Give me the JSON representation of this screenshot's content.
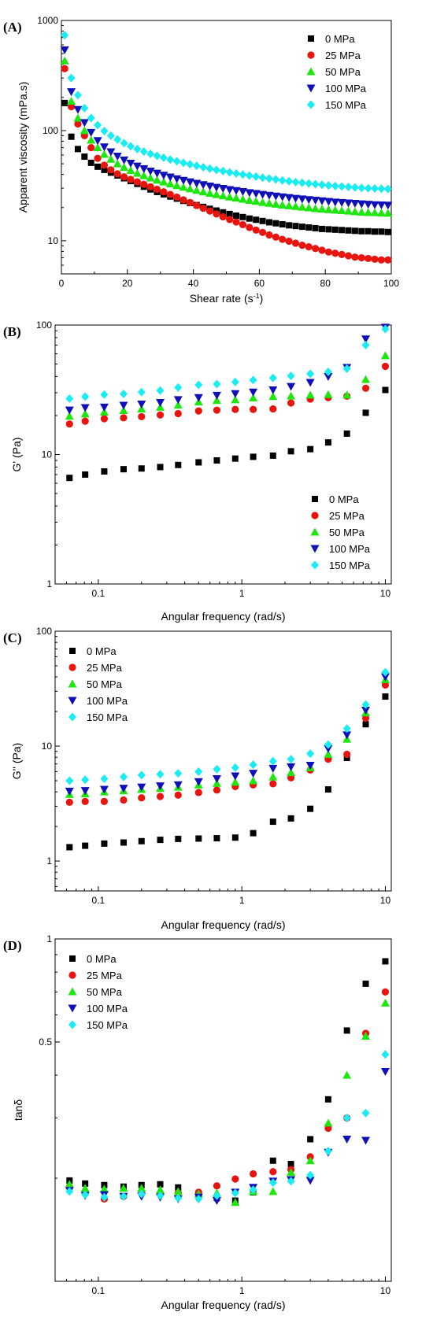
{
  "figure": {
    "panel_labels": [
      "(A)",
      "(B)",
      "(C)",
      "(D)"
    ]
  },
  "series_styles": [
    {
      "name": "0 MPa",
      "color": "#000000",
      "marker": "square"
    },
    {
      "name": "25 MPa",
      "color": "#e8140e",
      "marker": "circle"
    },
    {
      "name": "50 MPa",
      "color": "#1ee60f",
      "marker": "triangle-up"
    },
    {
      "name": "100 MPa",
      "color": "#1010b8",
      "marker": "triangle-down"
    },
    {
      "name": "150 MPa",
      "color": "#19ecf2",
      "marker": "diamond"
    }
  ],
  "chart_data": [
    {
      "panel": "(A)",
      "type": "scatter",
      "xlabel": "Shear rate (s",
      "xlabel_sup": "-1",
      "xlabel_tail": ")",
      "ylabel": "Apparent viscosity (mPa.s)",
      "x_scale": "linear",
      "y_scale": "log",
      "xlim": [
        0,
        100
      ],
      "ylim": [
        5,
        1000
      ],
      "x_ticks": [
        0,
        20,
        40,
        60,
        80,
        100
      ],
      "x_tick_labels": [
        "0",
        "20",
        "40",
        "60",
        "80",
        "100"
      ],
      "y_ticks": [
        10,
        100,
        1000
      ],
      "y_tick_labels": [
        "10",
        "100",
        "1000"
      ],
      "legend": "top-right",
      "x": [
        1,
        3,
        5,
        7,
        9,
        11,
        13,
        15,
        17,
        19,
        21,
        23,
        25,
        27,
        29,
        31,
        33,
        35,
        37,
        39,
        41,
        43,
        45,
        47,
        49,
        51,
        53,
        55,
        57,
        59,
        61,
        63,
        65,
        67,
        69,
        71,
        73,
        75,
        77,
        79,
        81,
        83,
        85,
        87,
        89,
        91,
        93,
        95,
        97,
        99
      ],
      "series": [
        {
          "name": "0 MPa",
          "values": [
            178,
            88,
            68,
            58,
            51,
            47,
            44,
            41.5,
            39.1,
            36.9,
            34.8,
            32.8,
            30.9,
            29.2,
            27.7,
            26.4,
            25.2,
            24.1,
            23,
            22,
            21.1,
            20.3,
            19.5,
            18.8,
            18.1,
            17.5,
            16.9,
            16.4,
            15.9,
            15.5,
            15.1,
            14.7,
            14.4,
            14.1,
            13.8,
            13.6,
            13.4,
            13.2,
            13,
            12.8,
            12.7,
            12.6,
            12.5,
            12.4,
            12.3,
            12.2,
            12.2,
            12.1,
            12.1,
            12
          ]
        },
        {
          "name": "25 MPa",
          "values": [
            365,
            165,
            115,
            90,
            70,
            56,
            48.5,
            44,
            40.5,
            38,
            36,
            34.2,
            32.5,
            30.9,
            29.3,
            27.8,
            26.3,
            24.9,
            23.5,
            22.2,
            20.9,
            19.7,
            18.6,
            17.5,
            16.5,
            15.6,
            14.8,
            14,
            13.2,
            12.5,
            11.9,
            11.3,
            10.8,
            10.3,
            9.9,
            9.5,
            9.1,
            8.8,
            8.5,
            8.2,
            7.9,
            7.7,
            7.5,
            7.3,
            7.1,
            7,
            6.9,
            6.8,
            6.7,
            6.7
          ]
        },
        {
          "name": "50 MPa",
          "values": [
            430,
            185,
            130,
            100,
            82,
            70,
            61,
            55,
            50,
            46.5,
            43.5,
            41,
            39,
            37.2,
            35.6,
            34.2,
            32.9,
            31.7,
            30.6,
            29.6,
            28.7,
            27.8,
            27,
            26.3,
            25.6,
            25,
            24.4,
            23.8,
            23.3,
            22.8,
            22.3,
            21.9,
            21.5,
            21.1,
            20.8,
            20.5,
            20.2,
            19.9,
            19.6,
            19.4,
            19.2,
            19,
            18.8,
            18.6,
            18.4,
            18.2,
            18.1,
            18,
            17.9,
            17.8
          ]
        },
        {
          "name": "100 MPa",
          "values": [
            540,
            225,
            155,
            118,
            96,
            81,
            71,
            64,
            58.5,
            54,
            50.5,
            47.5,
            45,
            42.8,
            41,
            39.3,
            37.8,
            36.5,
            35.3,
            34.2,
            33.2,
            32.2,
            31.3,
            30.5,
            29.8,
            29.1,
            28.5,
            27.9,
            27.3,
            26.8,
            26.3,
            25.8,
            25.4,
            25,
            24.6,
            24.2,
            23.9,
            23.6,
            23.3,
            23,
            22.7,
            22.4,
            22.2,
            22,
            21.8,
            21.6,
            21.4,
            21.2,
            21.1,
            21
          ]
        },
        {
          "name": "150 MPa",
          "values": [
            735,
            300,
            210,
            160,
            130,
            112,
            99,
            90,
            83,
            77,
            72,
            68,
            64.5,
            61.5,
            59,
            56.7,
            54.6,
            52.7,
            51,
            49.4,
            47.9,
            46.5,
            45.2,
            44,
            42.9,
            41.8,
            40.8,
            39.9,
            39,
            38.2,
            37.4,
            36.7,
            36,
            35.3,
            34.7,
            34.1,
            33.6,
            33.1,
            32.6,
            32.2,
            31.8,
            31.4,
            31.1,
            30.8,
            30.5,
            30.2,
            30,
            29.8,
            29.7,
            29.5
          ]
        }
      ]
    },
    {
      "panel": "(B)",
      "type": "scatter",
      "xlabel": "Angular frequency (rad/s)",
      "ylabel": "G' (Pa)",
      "x_scale": "log",
      "y_scale": "log",
      "xlim": [
        0.05,
        11
      ],
      "ylim": [
        1,
        100
      ],
      "x_ticks": [
        0.1,
        1,
        10
      ],
      "x_tick_labels": [
        "0.1",
        "1",
        "10"
      ],
      "y_ticks": [
        1,
        10,
        100
      ],
      "y_tick_labels": [
        "1",
        "10",
        "100"
      ],
      "legend": "bottom-right",
      "x": [
        0.063,
        0.081,
        0.11,
        0.15,
        0.2,
        0.27,
        0.36,
        0.5,
        0.67,
        0.9,
        1.2,
        1.65,
        2.2,
        3,
        4,
        5.4,
        7.3,
        10
      ],
      "series": [
        {
          "name": "0 MPa",
          "values": [
            6.6,
            7,
            7.4,
            7.7,
            7.8,
            8,
            8.3,
            8.7,
            9,
            9.3,
            9.6,
            9.8,
            10.6,
            11,
            12.4,
            14.5,
            21,
            31.5
          ]
        },
        {
          "name": "25 MPa",
          "values": [
            17.2,
            18.1,
            18.9,
            19.2,
            19.6,
            20.2,
            20.7,
            21.7,
            22,
            22.3,
            22.3,
            22.5,
            25,
            26.8,
            27.5,
            28.2,
            32.5,
            48
          ]
        },
        {
          "name": "50 MPa",
          "values": [
            19.8,
            20.6,
            21.3,
            21.9,
            22.5,
            23.2,
            24.1,
            25.5,
            26.2,
            26.5,
            27.4,
            28.1,
            28.3,
            28.8,
            29.1,
            28.8,
            38,
            58
          ]
        },
        {
          "name": "100 MPa",
          "values": [
            22,
            23,
            23.2,
            24,
            24.5,
            25.2,
            26.5,
            27.5,
            28.6,
            29.5,
            30.3,
            31.5,
            33.5,
            36,
            40,
            47,
            78,
            96
          ]
        },
        {
          "name": "150 MPa",
          "values": [
            27,
            28,
            29,
            29.4,
            30.3,
            31.2,
            32.9,
            34.5,
            35,
            36.3,
            37.6,
            39,
            40.5,
            42,
            43.5,
            46,
            70,
            93
          ]
        }
      ]
    },
    {
      "panel": "(C)",
      "type": "scatter",
      "xlabel": "Angular frequency (rad/s)",
      "ylabel": "G'' (Pa)",
      "x_scale": "log",
      "y_scale": "log",
      "xlim": [
        0.05,
        11
      ],
      "ylim": [
        0.55,
        100
      ],
      "x_ticks": [
        0.1,
        1,
        10
      ],
      "x_tick_labels": [
        "0.1",
        "1",
        "10"
      ],
      "y_ticks": [
        1,
        10,
        100
      ],
      "y_tick_labels": [
        "1",
        "10",
        "100"
      ],
      "legend": "top-left",
      "x": [
        0.063,
        0.081,
        0.11,
        0.15,
        0.2,
        0.27,
        0.36,
        0.5,
        0.67,
        0.9,
        1.2,
        1.65,
        2.2,
        3,
        4,
        5.4,
        7.3,
        10
      ],
      "series": [
        {
          "name": "0 MPa",
          "values": [
            1.32,
            1.36,
            1.42,
            1.45,
            1.49,
            1.53,
            1.56,
            1.57,
            1.58,
            1.6,
            1.75,
            2.2,
            2.35,
            2.85,
            4.2,
            7.9,
            15.5,
            27
          ]
        },
        {
          "name": "25 MPa",
          "values": [
            3.25,
            3.3,
            3.3,
            3.4,
            3.55,
            3.65,
            3.75,
            3.95,
            4.15,
            4.45,
            4.6,
            4.7,
            5.3,
            6.2,
            7.7,
            8.5,
            17.5,
            34
          ]
        },
        {
          "name": "50 MPa",
          "values": [
            3.8,
            3.85,
            4,
            4.1,
            4.2,
            4.3,
            4.4,
            4.6,
            4.75,
            4.85,
            5,
            5.4,
            5.9,
            6.5,
            8.5,
            11.5,
            19.5,
            38
          ]
        },
        {
          "name": "100 MPa",
          "values": [
            4.05,
            4.1,
            4.2,
            4.3,
            4.4,
            4.5,
            4.6,
            4.9,
            5.2,
            5.5,
            5.8,
            6.4,
            6.6,
            6.8,
            9.5,
            12.5,
            20.5,
            40
          ]
        },
        {
          "name": "150 MPa",
          "values": [
            5,
            5.1,
            5.2,
            5.4,
            5.6,
            5.7,
            5.8,
            6,
            6.3,
            6.5,
            6.9,
            7.4,
            7.7,
            8.6,
            10.3,
            14.2,
            23,
            44
          ]
        }
      ]
    },
    {
      "panel": "(D)",
      "type": "scatter",
      "xlabel": "Angular frequency (rad/s)",
      "ylabel": "tanδ",
      "x_scale": "log",
      "y_scale": "log",
      "xlim": [
        0.05,
        11
      ],
      "ylim": [
        0.1,
        1
      ],
      "x_ticks": [
        0.1,
        1,
        10
      ],
      "x_tick_labels": [
        "0.1",
        "1",
        "10"
      ],
      "y_ticks": [
        0.5,
        1
      ],
      "y_tick_labels": [
        "0.5",
        "1"
      ],
      "legend": "top-left",
      "x": [
        0.063,
        0.081,
        0.11,
        0.15,
        0.2,
        0.27,
        0.36,
        0.5,
        0.67,
        0.9,
        1.2,
        1.65,
        2.2,
        3,
        4,
        5.4,
        7.3,
        10
      ],
      "series": [
        {
          "name": "0 MPa",
          "values": [
            0.197,
            0.193,
            0.191,
            0.189,
            0.191,
            0.192,
            0.188,
            0.18,
            0.175,
            0.172,
            0.182,
            0.225,
            0.22,
            0.26,
            0.34,
            0.54,
            0.74,
            0.86
          ]
        },
        {
          "name": "25 MPa",
          "values": [
            0.189,
            0.183,
            0.174,
            0.177,
            0.181,
            0.18,
            0.181,
            0.182,
            0.19,
            0.199,
            0.206,
            0.209,
            0.212,
            0.231,
            0.28,
            0.3,
            0.53,
            0.7
          ]
        },
        {
          "name": "50 MPa",
          "values": [
            0.192,
            0.187,
            0.186,
            0.187,
            0.187,
            0.185,
            0.183,
            0.18,
            0.181,
            0.17,
            0.183,
            0.183,
            0.208,
            0.225,
            0.29,
            0.4,
            0.52,
            0.65
          ]
        },
        {
          "name": "100 MPa",
          "values": [
            0.184,
            0.178,
            0.179,
            0.177,
            0.177,
            0.176,
            0.174,
            0.176,
            0.172,
            0.182,
            0.188,
            0.196,
            0.198,
            0.197,
            0.238,
            0.26,
            0.258,
            0.41
          ]
        },
        {
          "name": "150 MPa",
          "values": [
            0.183,
            0.179,
            0.176,
            0.177,
            0.18,
            0.178,
            0.175,
            0.174,
            0.178,
            0.181,
            0.185,
            0.194,
            0.196,
            0.204,
            0.24,
            0.3,
            0.31,
            0.46
          ]
        }
      ]
    }
  ]
}
